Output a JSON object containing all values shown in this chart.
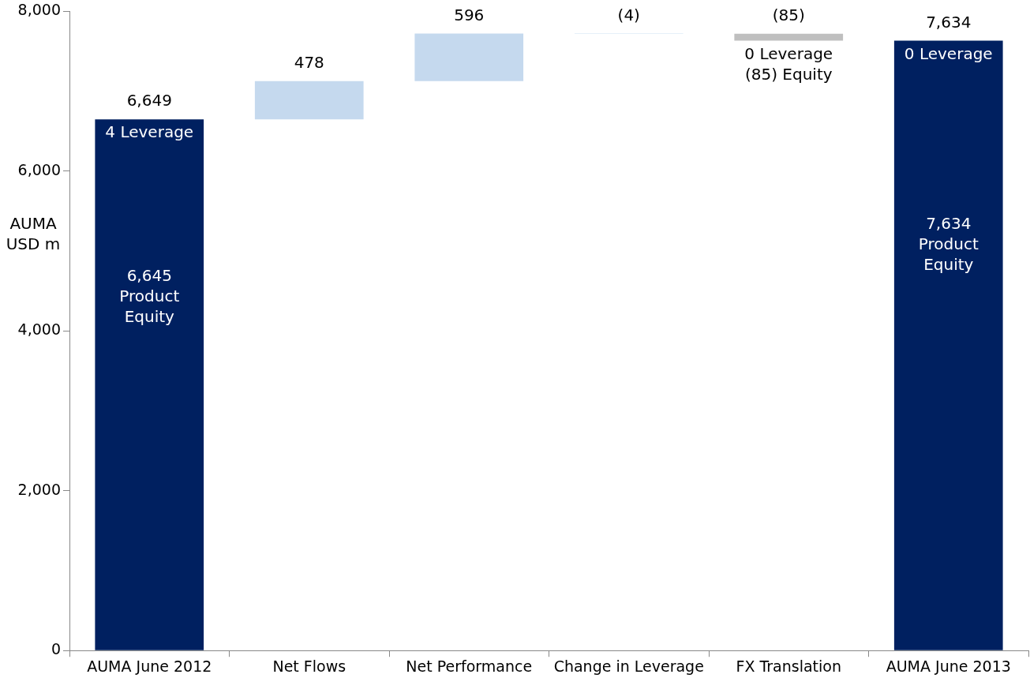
{
  "chart_data": {
    "type": "bar",
    "ylabel": "AUMA\nUSD m",
    "categories": [
      "AUMA June 2012",
      "Net Flows",
      "Net Performance",
      "Change in Leverage",
      "FX Translation",
      "AUMA June 2013"
    ],
    "values": [
      6649,
      478,
      596,
      -4,
      -85,
      7634
    ],
    "base": [
      0,
      6649,
      7127,
      7723,
      7719,
      0
    ],
    "colors": [
      "#002060",
      "#c5d9ee",
      "#c5d9ee",
      "#9dc3e6",
      "#bfbfbf",
      "#002060"
    ],
    "value_labels": [
      "6,649",
      "478",
      "596",
      "(4)",
      "(85)",
      "7,634"
    ],
    "ylim": [
      0,
      8000
    ],
    "yticks": [
      {
        "value": 0,
        "label": "0"
      },
      {
        "value": 2000,
        "label": "2,000"
      },
      {
        "value": 4000,
        "label": "4,000"
      },
      {
        "value": 6000,
        "label": "6,000"
      },
      {
        "value": 8000,
        "label": "8,000"
      }
    ],
    "grid": false,
    "legend": false,
    "annotations": [
      {
        "text": "4 Leverage",
        "x": "AUMA June 2012",
        "y": 6649
      },
      "6,645\nProduct\nEquity",
      {
        "text": "0 Leverage\n(85) Equity",
        "x": "FX Translation",
        "y": 7634
      },
      {
        "text": "0 Leverage",
        "x": "AUMA June 2013",
        "y": 7634
      },
      "7,634\nProduct\nEquity"
    ]
  }
}
